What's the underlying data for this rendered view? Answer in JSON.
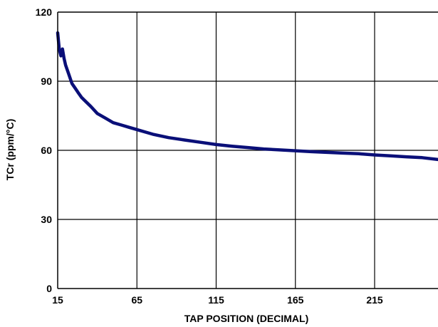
{
  "chart_data": {
    "type": "line",
    "title": "",
    "xlabel": "TAP POSITION (DECIMAL)",
    "ylabel": "TCr (ppm/°C)",
    "xlim": [
      15,
      255
    ],
    "ylim": [
      0,
      120
    ],
    "x_ticks": [
      "15",
      "65",
      "115",
      "165",
      "215"
    ],
    "y_ticks": [
      "0",
      "30",
      "60",
      "90",
      "120"
    ],
    "grid": true,
    "line_color": "#0a0f78",
    "series": [
      {
        "x": [
          15,
          16,
          17,
          18,
          19,
          20,
          22,
          24,
          26,
          28,
          30,
          33,
          36,
          40,
          45,
          50,
          55,
          60,
          65,
          75,
          85,
          95,
          105,
          115,
          125,
          135,
          145,
          155,
          165,
          175,
          185,
          195,
          205,
          215,
          225,
          235,
          245,
          255
        ],
        "y": [
          111,
          104,
          101,
          104,
          100,
          97,
          93,
          89,
          87,
          85,
          83,
          81,
          79,
          76,
          74,
          72,
          71,
          70,
          69,
          67,
          65.5,
          64.5,
          63.5,
          62.5,
          61.8,
          61.2,
          60.6,
          60.2,
          59.8,
          59.4,
          59.1,
          58.8,
          58.5,
          58,
          57.6,
          57.2,
          56.8,
          56
        ]
      }
    ]
  }
}
